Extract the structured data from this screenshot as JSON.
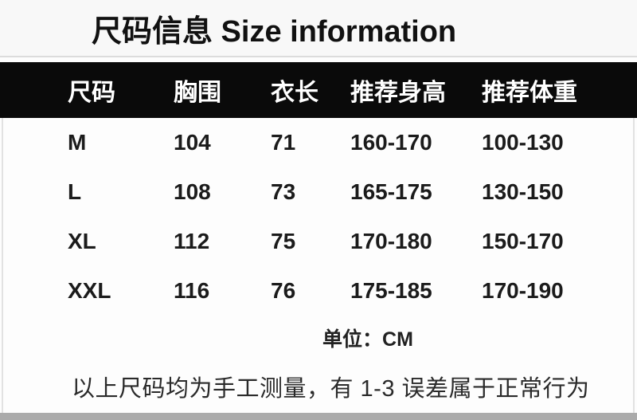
{
  "title": "尺码信息 Size information",
  "unit_label": "单位：CM",
  "note": "以上尺码均为手工测量，有 1-3 误差属于正常行为",
  "colors": {
    "header_bg": "#0a0a0a",
    "header_text": "#ffffff",
    "body_text": "#1b1b1b",
    "title_strip_bg": "#f8f8f8",
    "bottom_band": "#ababab"
  },
  "chart_data": {
    "type": "table",
    "title": "尺码信息 Size information",
    "columns": [
      "尺码",
      "胸围",
      "衣长",
      "推荐身高",
      "推荐体重"
    ],
    "rows": [
      [
        "M",
        "104",
        "71",
        "160-170",
        "100-130"
      ],
      [
        "L",
        "108",
        "73",
        "165-175",
        "130-150"
      ],
      [
        "XL",
        "112",
        "75",
        "170-180",
        "150-170"
      ],
      [
        "XXL",
        "116",
        "76",
        "175-185",
        "170-190"
      ]
    ],
    "unit": "单位：CM",
    "footnote": "以上尺码均为手工测量，有 1-3 误差属于正常行为",
    "layout": {
      "header_style": "white-on-black",
      "grid_lines": "none"
    }
  }
}
